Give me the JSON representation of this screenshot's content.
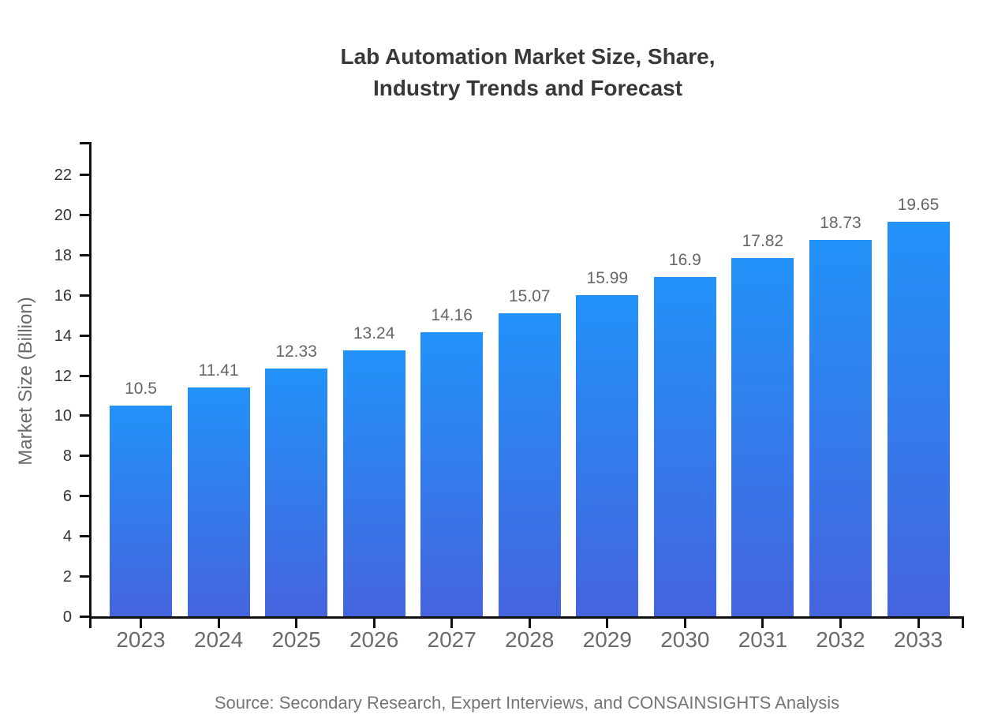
{
  "title": {
    "text": "Lab Automation Market Size, Share,\nIndustry Trends and Forecast"
  },
  "source": "Source: Secondary Research, Expert Interviews, and CONSAINSIGHTS Analysis",
  "chart_data": {
    "type": "bar",
    "title": "Lab Automation Market Size, Share, Industry Trends and Forecast",
    "categories": [
      "2023",
      "2024",
      "2025",
      "2026",
      "2027",
      "2028",
      "2029",
      "2030",
      "2031",
      "2032",
      "2033"
    ],
    "values": [
      10.5,
      11.41,
      12.33,
      13.24,
      14.16,
      15.07,
      15.99,
      16.9,
      17.82,
      18.73,
      19.65
    ],
    "value_labels": [
      "10.5",
      "11.41",
      "12.33",
      "13.24",
      "14.16",
      "15.07",
      "15.99",
      "16.9",
      "17.82",
      "18.73",
      "19.65"
    ],
    "xlabel": "",
    "ylabel": "Market Size (Billion)",
    "ylim": [
      0,
      23.6
    ],
    "yticks": [
      0,
      2,
      4,
      6,
      8,
      10,
      12,
      14,
      16,
      18,
      20,
      22
    ],
    "grid": false,
    "legend": "none",
    "colors": {
      "bar_gradient_top": "#2292f8",
      "bar_gradient_bottom": "#4564de",
      "axis": "#111111",
      "y_tick_label": "#333333",
      "x_tick_label": "#6b6b6b",
      "value_label": "#666666",
      "title": "#383838",
      "source": "#757575"
    }
  }
}
